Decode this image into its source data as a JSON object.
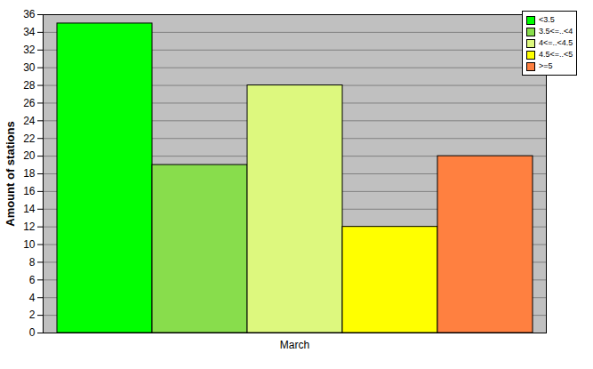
{
  "chart_data": {
    "type": "bar",
    "y_label": "Amount of stations",
    "categories": [
      "March"
    ],
    "series": [
      {
        "name": "<3.5",
        "color": "#00ff00",
        "values": [
          35
        ]
      },
      {
        "name": "3.5<=..<4",
        "color": "#88dd4c",
        "values": [
          19
        ]
      },
      {
        "name": "4<=..<4.5",
        "color": "#ddf87e",
        "values": [
          28
        ]
      },
      {
        "name": "4.5<=..<5",
        "color": "#ffff00",
        "values": [
          12
        ]
      },
      {
        "name": ">=5",
        "color": "#ff8040",
        "values": [
          20
        ]
      }
    ],
    "ylim": [
      0,
      36
    ],
    "yticks": [
      0,
      2,
      4,
      6,
      8,
      10,
      12,
      14,
      16,
      18,
      20,
      22,
      24,
      26,
      28,
      30,
      32,
      34,
      36
    ],
    "grid": true,
    "legend": "top-right"
  }
}
